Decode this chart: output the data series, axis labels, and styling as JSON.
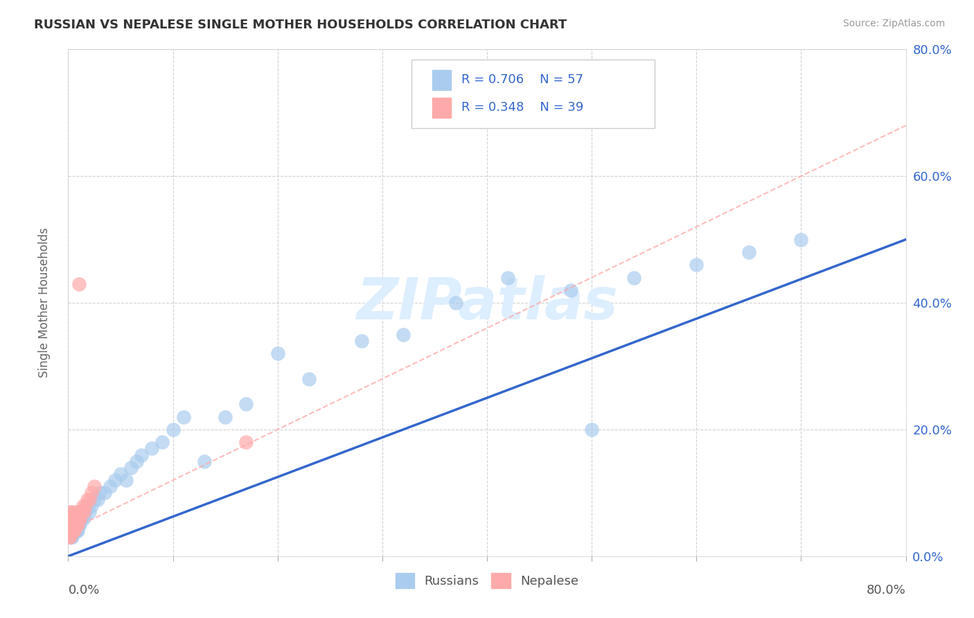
{
  "title": "RUSSIAN VS NEPALESE SINGLE MOTHER HOUSEHOLDS CORRELATION CHART",
  "source": "Source: ZipAtlas.com",
  "ylabel": "Single Mother Households",
  "legend_r1": "R = 0.706",
  "legend_n1": "N = 57",
  "legend_r2": "R = 0.348",
  "legend_n2": "N = 39",
  "xlim": [
    0,
    0.8
  ],
  "ylim": [
    0,
    0.8
  ],
  "background_color": "#ffffff",
  "plot_bg_color": "#ffffff",
  "grid_color": "#cccccc",
  "blue_scatter_color": "#aaccee",
  "pink_scatter_color": "#ffaaaa",
  "blue_line_color": "#3366cc",
  "pink_line_color": "#ff6688",
  "dashed_line_color": "#ffaaaa",
  "watermark": "ZIPatlas",
  "watermark_color": "#ddeeff",
  "russian_x": [
    0.001,
    0.002,
    0.002,
    0.003,
    0.003,
    0.004,
    0.004,
    0.005,
    0.005,
    0.006,
    0.006,
    0.007,
    0.007,
    0.008,
    0.008,
    0.009,
    0.01,
    0.01,
    0.011,
    0.012,
    0.013,
    0.014,
    0.015,
    0.016,
    0.018,
    0.02,
    0.022,
    0.025,
    0.028,
    0.03,
    0.035,
    0.04,
    0.045,
    0.05,
    0.055,
    0.06,
    0.065,
    0.07,
    0.08,
    0.09,
    0.1,
    0.11,
    0.13,
    0.15,
    0.17,
    0.2,
    0.23,
    0.28,
    0.32,
    0.37,
    0.42,
    0.48,
    0.54,
    0.6,
    0.65,
    0.7,
    0.5
  ],
  "russian_y": [
    0.03,
    0.04,
    0.05,
    0.03,
    0.04,
    0.05,
    0.03,
    0.04,
    0.05,
    0.04,
    0.05,
    0.04,
    0.05,
    0.04,
    0.05,
    0.04,
    0.05,
    0.06,
    0.05,
    0.06,
    0.06,
    0.07,
    0.06,
    0.07,
    0.08,
    0.07,
    0.08,
    0.09,
    0.09,
    0.1,
    0.1,
    0.11,
    0.12,
    0.13,
    0.12,
    0.14,
    0.15,
    0.16,
    0.17,
    0.18,
    0.2,
    0.22,
    0.15,
    0.22,
    0.24,
    0.32,
    0.28,
    0.34,
    0.35,
    0.4,
    0.44,
    0.42,
    0.44,
    0.46,
    0.48,
    0.5,
    0.2
  ],
  "nepalese_x": [
    0.001,
    0.001,
    0.001,
    0.001,
    0.002,
    0.002,
    0.002,
    0.002,
    0.002,
    0.003,
    0.003,
    0.003,
    0.004,
    0.004,
    0.004,
    0.005,
    0.005,
    0.005,
    0.006,
    0.006,
    0.007,
    0.007,
    0.008,
    0.008,
    0.009,
    0.01,
    0.01,
    0.011,
    0.012,
    0.013,
    0.014,
    0.015,
    0.016,
    0.018,
    0.02,
    0.022,
    0.025,
    0.17,
    0.01
  ],
  "nepalese_y": [
    0.03,
    0.04,
    0.05,
    0.06,
    0.03,
    0.04,
    0.05,
    0.06,
    0.07,
    0.04,
    0.05,
    0.06,
    0.04,
    0.05,
    0.07,
    0.04,
    0.05,
    0.06,
    0.04,
    0.06,
    0.05,
    0.07,
    0.05,
    0.06,
    0.05,
    0.06,
    0.07,
    0.06,
    0.07,
    0.07,
    0.08,
    0.07,
    0.08,
    0.09,
    0.09,
    0.1,
    0.11,
    0.18,
    0.43
  ],
  "blue_line_x0": 0.0,
  "blue_line_y0": 0.0,
  "blue_line_x1": 0.8,
  "blue_line_y1": 0.5,
  "dashed_line_x0": 0.0,
  "dashed_line_y0": 0.04,
  "dashed_line_x1": 0.8,
  "dashed_line_y1": 0.68
}
